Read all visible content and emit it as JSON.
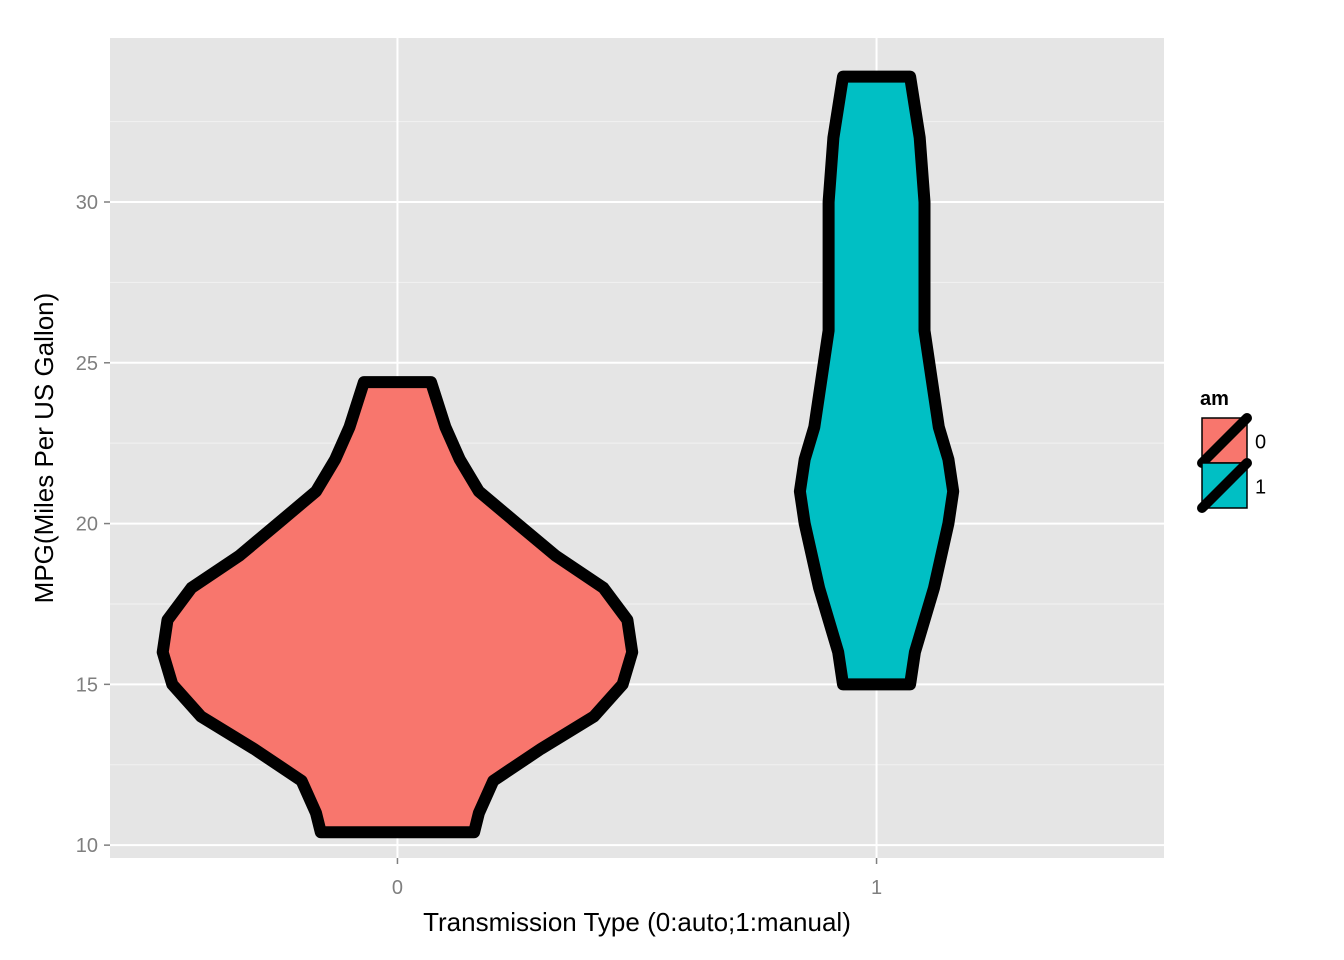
{
  "chart_data": {
    "type": "violin",
    "title": "",
    "xlabel": "Transmission Type (0:auto;1:manual)",
    "ylabel": "MPG(Miles Per US Gallon)",
    "categories": [
      "0",
      "1"
    ],
    "ylim": [
      9.6,
      35.1
    ],
    "yticks": [
      10,
      15,
      20,
      25,
      30
    ],
    "grid": true,
    "legend": {
      "title": "am",
      "position": "right",
      "entries": [
        "0",
        "1"
      ]
    },
    "series": [
      {
        "category": "0",
        "color": "#F8766D",
        "min": 10.4,
        "max": 24.4,
        "profile": [
          {
            "y": 10.4,
            "w": 0.16
          },
          {
            "y": 11.0,
            "w": 0.17
          },
          {
            "y": 12.0,
            "w": 0.2
          },
          {
            "y": 13.0,
            "w": 0.3
          },
          {
            "y": 14.0,
            "w": 0.41
          },
          {
            "y": 15.0,
            "w": 0.47
          },
          {
            "y": 16.0,
            "w": 0.49
          },
          {
            "y": 17.0,
            "w": 0.48
          },
          {
            "y": 18.0,
            "w": 0.43
          },
          {
            "y": 19.0,
            "w": 0.33
          },
          {
            "y": 20.0,
            "w": 0.25
          },
          {
            "y": 21.0,
            "w": 0.17
          },
          {
            "y": 22.0,
            "w": 0.13
          },
          {
            "y": 23.0,
            "w": 0.1
          },
          {
            "y": 24.4,
            "w": 0.07
          }
        ]
      },
      {
        "category": "1",
        "color": "#00BFC4",
        "min": 15.0,
        "max": 33.9,
        "profile": [
          {
            "y": 15.0,
            "w": 0.07
          },
          {
            "y": 16.0,
            "w": 0.08
          },
          {
            "y": 18.0,
            "w": 0.12
          },
          {
            "y": 20.0,
            "w": 0.15
          },
          {
            "y": 21.0,
            "w": 0.16
          },
          {
            "y": 22.0,
            "w": 0.15
          },
          {
            "y": 23.0,
            "w": 0.13
          },
          {
            "y": 24.0,
            "w": 0.12
          },
          {
            "y": 26.0,
            "w": 0.1
          },
          {
            "y": 28.0,
            "w": 0.1
          },
          {
            "y": 30.0,
            "w": 0.1
          },
          {
            "y": 32.0,
            "w": 0.09
          },
          {
            "y": 33.9,
            "w": 0.07
          }
        ]
      }
    ]
  }
}
